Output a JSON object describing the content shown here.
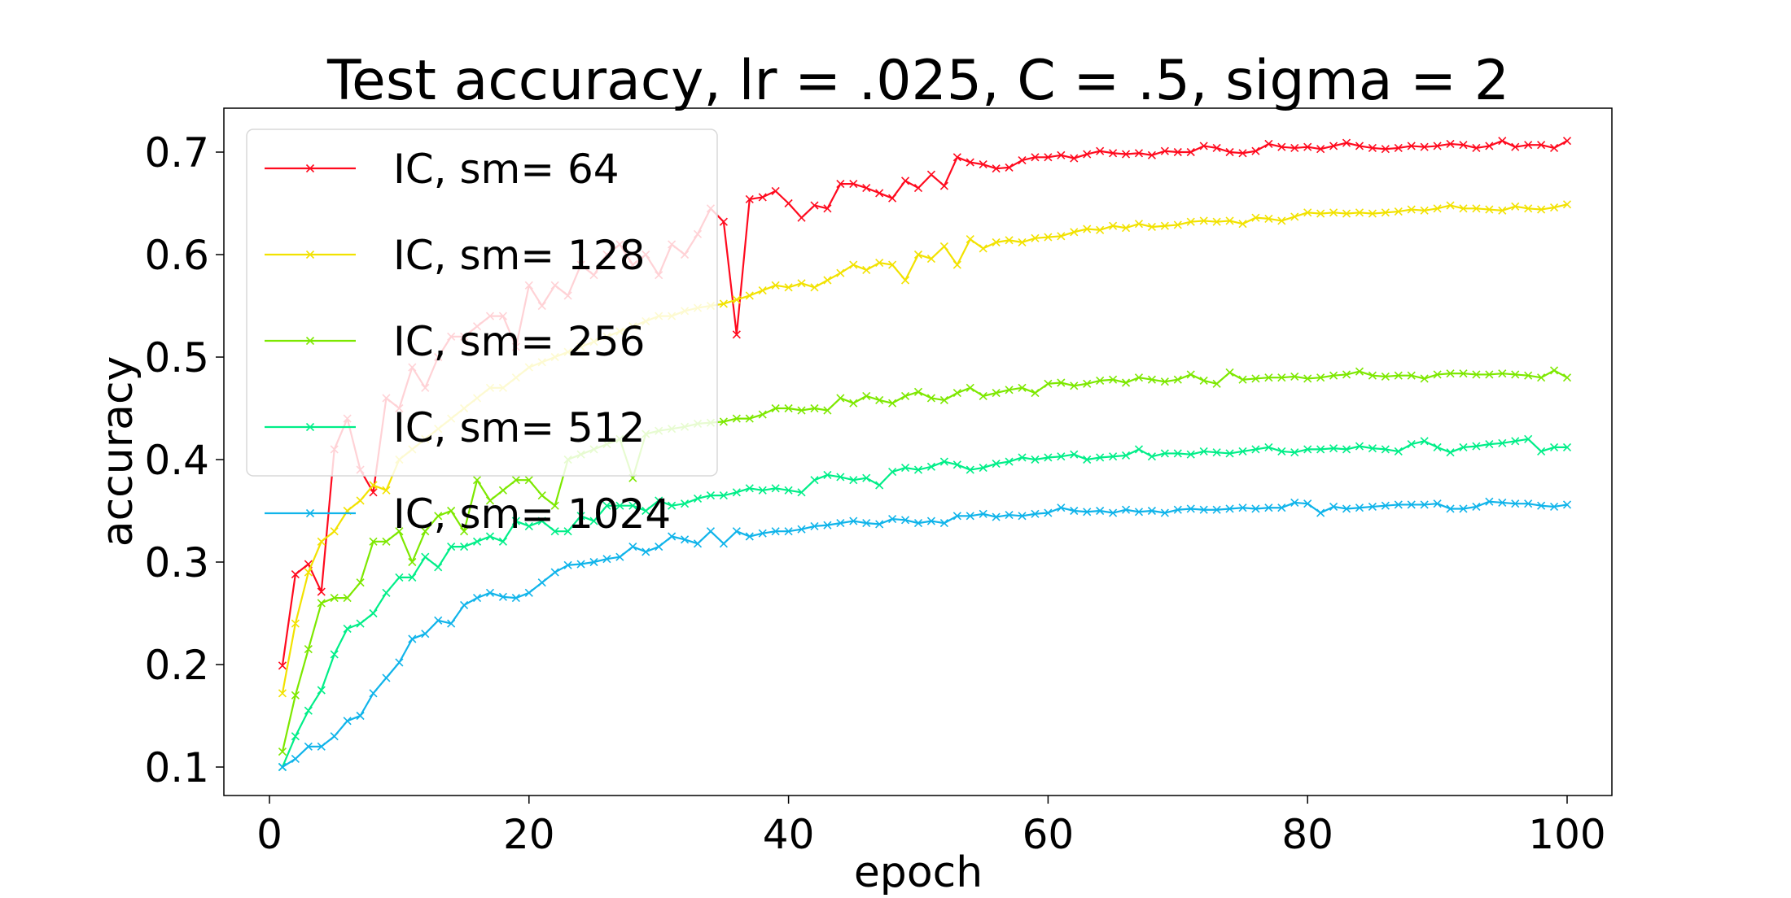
{
  "chart_data": {
    "type": "line",
    "title": "Test accuracy, lr = .025, C = .5, sigma = 2",
    "xlabel": "epoch",
    "ylabel": "accuracy",
    "xlim": [
      -4,
      105
    ],
    "ylim": [
      0.07,
      0.74
    ],
    "xticks": [
      0,
      20,
      40,
      60,
      80,
      100
    ],
    "xtick_labels": [
      "0",
      "20",
      "40",
      "60",
      "80",
      "100"
    ],
    "yticks": [
      0.1,
      0.2,
      0.3,
      0.4,
      0.5,
      0.6,
      0.7
    ],
    "ytick_labels": [
      "0.1",
      "0.2",
      "0.3",
      "0.4",
      "0.5",
      "0.6",
      "0.7"
    ],
    "grid": false,
    "legend_placement": "upper-left",
    "marker": "x",
    "x_start": 1,
    "series": [
      {
        "name": "IC, sm= 64",
        "color": "#ff0a1e",
        "values": [
          0.199,
          0.288,
          0.298,
          0.271,
          0.41,
          0.44,
          0.39,
          0.368,
          0.46,
          0.45,
          0.49,
          0.47,
          0.5,
          0.52,
          0.52,
          0.53,
          0.54,
          0.54,
          0.51,
          0.57,
          0.55,
          0.57,
          0.56,
          0.59,
          0.58,
          0.6,
          0.61,
          0.59,
          0.6,
          0.58,
          0.61,
          0.6,
          0.62,
          0.645,
          0.632,
          0.522,
          0.654,
          0.656,
          0.662,
          0.65,
          0.636,
          0.648,
          0.645,
          0.669,
          0.669,
          0.665,
          0.66,
          0.655,
          0.672,
          0.665,
          0.678,
          0.667,
          0.695,
          0.69,
          0.688,
          0.684,
          0.685,
          0.692,
          0.695,
          0.695,
          0.697,
          0.694,
          0.698,
          0.701,
          0.699,
          0.698,
          0.699,
          0.697,
          0.701,
          0.7,
          0.7,
          0.706,
          0.704,
          0.7,
          0.699,
          0.701,
          0.708,
          0.705,
          0.704,
          0.705,
          0.703,
          0.706,
          0.709,
          0.706,
          0.704,
          0.703,
          0.704,
          0.706,
          0.705,
          0.706,
          0.708,
          0.707,
          0.704,
          0.706,
          0.711,
          0.705,
          0.707,
          0.707,
          0.704,
          0.711
        ]
      },
      {
        "name": "IC, sm= 128",
        "color": "#f2e200",
        "values": [
          0.172,
          0.24,
          0.29,
          0.32,
          0.33,
          0.35,
          0.36,
          0.375,
          0.37,
          0.4,
          0.41,
          0.42,
          0.43,
          0.44,
          0.45,
          0.46,
          0.47,
          0.47,
          0.48,
          0.49,
          0.495,
          0.5,
          0.505,
          0.51,
          0.515,
          0.52,
          0.525,
          0.53,
          0.535,
          0.54,
          0.54,
          0.545,
          0.548,
          0.55,
          0.552,
          0.556,
          0.56,
          0.565,
          0.57,
          0.568,
          0.572,
          0.568,
          0.575,
          0.582,
          0.59,
          0.585,
          0.592,
          0.59,
          0.575,
          0.6,
          0.596,
          0.608,
          0.59,
          0.615,
          0.606,
          0.612,
          0.614,
          0.612,
          0.616,
          0.617,
          0.618,
          0.622,
          0.625,
          0.624,
          0.628,
          0.626,
          0.63,
          0.627,
          0.628,
          0.629,
          0.632,
          0.633,
          0.632,
          0.633,
          0.63,
          0.636,
          0.635,
          0.633,
          0.637,
          0.641,
          0.64,
          0.641,
          0.64,
          0.641,
          0.64,
          0.641,
          0.642,
          0.644,
          0.643,
          0.645,
          0.648,
          0.645,
          0.645,
          0.644,
          0.643,
          0.647,
          0.645,
          0.644,
          0.646,
          0.649
        ]
      },
      {
        "name": "IC, sm= 256",
        "color": "#7de800",
        "values": [
          0.115,
          0.17,
          0.215,
          0.26,
          0.265,
          0.265,
          0.28,
          0.32,
          0.32,
          0.33,
          0.3,
          0.33,
          0.345,
          0.35,
          0.33,
          0.38,
          0.36,
          0.37,
          0.38,
          0.38,
          0.365,
          0.355,
          0.4,
          0.405,
          0.41,
          0.415,
          0.42,
          0.382,
          0.425,
          0.428,
          0.43,
          0.432,
          0.435,
          0.436,
          0.437,
          0.44,
          0.44,
          0.444,
          0.45,
          0.45,
          0.448,
          0.45,
          0.448,
          0.46,
          0.455,
          0.462,
          0.458,
          0.455,
          0.462,
          0.466,
          0.46,
          0.458,
          0.465,
          0.47,
          0.462,
          0.465,
          0.468,
          0.47,
          0.465,
          0.474,
          0.475,
          0.472,
          0.474,
          0.477,
          0.478,
          0.475,
          0.48,
          0.478,
          0.476,
          0.478,
          0.483,
          0.477,
          0.474,
          0.485,
          0.478,
          0.479,
          0.48,
          0.48,
          0.481,
          0.479,
          0.48,
          0.482,
          0.483,
          0.486,
          0.482,
          0.481,
          0.482,
          0.482,
          0.479,
          0.483,
          0.484,
          0.484,
          0.483,
          0.483,
          0.484,
          0.483,
          0.482,
          0.48,
          0.487,
          0.48
        ]
      },
      {
        "name": "IC, sm= 512",
        "color": "#00ee88",
        "values": [
          0.1,
          0.13,
          0.155,
          0.175,
          0.21,
          0.235,
          0.24,
          0.25,
          0.27,
          0.285,
          0.285,
          0.305,
          0.295,
          0.315,
          0.315,
          0.32,
          0.325,
          0.32,
          0.34,
          0.335,
          0.34,
          0.33,
          0.33,
          0.345,
          0.34,
          0.355,
          0.355,
          0.355,
          0.35,
          0.36,
          0.355,
          0.357,
          0.362,
          0.365,
          0.365,
          0.368,
          0.372,
          0.37,
          0.372,
          0.37,
          0.368,
          0.38,
          0.385,
          0.383,
          0.38,
          0.382,
          0.375,
          0.388,
          0.392,
          0.39,
          0.393,
          0.398,
          0.395,
          0.39,
          0.392,
          0.396,
          0.398,
          0.402,
          0.4,
          0.402,
          0.403,
          0.405,
          0.4,
          0.402,
          0.403,
          0.404,
          0.41,
          0.403,
          0.406,
          0.406,
          0.405,
          0.408,
          0.407,
          0.406,
          0.408,
          0.41,
          0.412,
          0.408,
          0.407,
          0.41,
          0.41,
          0.411,
          0.41,
          0.413,
          0.411,
          0.41,
          0.408,
          0.415,
          0.418,
          0.412,
          0.407,
          0.412,
          0.413,
          0.415,
          0.416,
          0.418,
          0.42,
          0.408,
          0.412,
          0.412
        ]
      },
      {
        "name": "IC, sm= 1024",
        "color": "#10b4ea",
        "values": [
          0.1,
          0.108,
          0.12,
          0.12,
          0.13,
          0.145,
          0.15,
          0.172,
          0.187,
          0.202,
          0.225,
          0.23,
          0.243,
          0.24,
          0.258,
          0.265,
          0.27,
          0.266,
          0.265,
          0.27,
          0.28,
          0.29,
          0.297,
          0.298,
          0.3,
          0.303,
          0.305,
          0.315,
          0.31,
          0.315,
          0.325,
          0.322,
          0.318,
          0.33,
          0.318,
          0.33,
          0.325,
          0.328,
          0.33,
          0.33,
          0.332,
          0.335,
          0.336,
          0.338,
          0.34,
          0.338,
          0.337,
          0.342,
          0.341,
          0.338,
          0.34,
          0.338,
          0.345,
          0.345,
          0.347,
          0.344,
          0.346,
          0.345,
          0.347,
          0.348,
          0.353,
          0.35,
          0.349,
          0.35,
          0.348,
          0.351,
          0.349,
          0.35,
          0.348,
          0.351,
          0.352,
          0.351,
          0.351,
          0.352,
          0.353,
          0.352,
          0.353,
          0.353,
          0.358,
          0.357,
          0.348,
          0.354,
          0.352,
          0.353,
          0.354,
          0.355,
          0.356,
          0.356,
          0.356,
          0.357,
          0.352,
          0.352,
          0.354,
          0.359,
          0.358,
          0.357,
          0.357,
          0.355,
          0.354,
          0.356
        ]
      }
    ]
  }
}
